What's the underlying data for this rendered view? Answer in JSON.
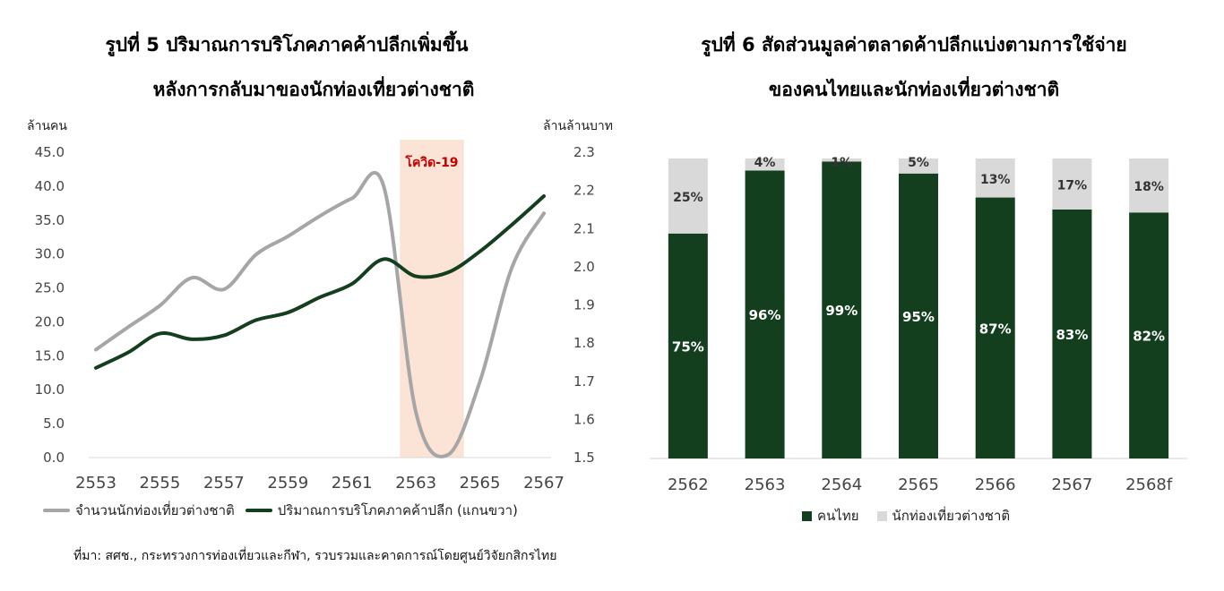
{
  "left_chart": {
    "title_line1": "รูปที่ 5 ปริมาณการบริโภคภาคค้าปลีกเพิ่มขึ้น",
    "title_line2": "หลังการกลับมาของนักท่องเที่ยวต่างชาติ",
    "left_unit": "ล้านคน",
    "right_unit": "ล้านล้านบาท",
    "covid_label": "โควิด-19",
    "legend_tourists": "จำนวนนักท่องเที่ยวต่างชาติ",
    "legend_consumption": "ปริมาณการบริโภคภาคค้าปลีก (แกนขวา)"
  },
  "right_chart": {
    "title_line1": "รูปที่ 6 สัดส่วนมูลค่าตลาดค้าปลีกแบ่งตามการใช้จ่าย",
    "title_line2": "ของคนไทยและนักท่องเที่ยวต่างชาติ",
    "legend_thai": "คนไทย",
    "legend_foreign": "นักท่องเที่ยวต่างชาติ"
  },
  "source": "ที่มา: สศช., กระทรวงการท่องเที่ยวและกีฬา, รวบรวมและคาดการณ์โดยศูนย์วิจัยกสิกรไทย",
  "colors": {
    "dark_green": "#133f1e",
    "grey": "#a6a6a6",
    "light_grey": "#d9d9d9",
    "covid_band": "#fbe3d6",
    "covid_text": "#c00000"
  },
  "chart_data": [
    {
      "type": "line",
      "x_ticks": [
        "2553",
        "2555",
        "2557",
        "2559",
        "2561",
        "2563",
        "2565",
        "2567"
      ],
      "y_left_ticks": [
        "0.0",
        "5.0",
        "10.0",
        "15.0",
        "20.0",
        "25.0",
        "30.0",
        "35.0",
        "40.0",
        "45.0"
      ],
      "y_right_ticks": [
        "1.5",
        "1.6",
        "1.7",
        "1.8",
        "1.9",
        "2.0",
        "2.1",
        "2.2",
        "2.3"
      ],
      "ylim_left": [
        0,
        45
      ],
      "ylim_right": [
        1.5,
        2.3
      ],
      "covid_band": [
        2562.5,
        2564.5
      ],
      "series": [
        {
          "name": "จำนวนนักท่องเที่ยวต่างชาติ",
          "axis": "left",
          "color": "#a6a6a6",
          "x": [
            2553,
            2554,
            2555,
            2556,
            2557,
            2558,
            2559,
            2560,
            2561,
            2562,
            2563,
            2564,
            2565,
            2566,
            2567
          ],
          "values": [
            15.9,
            19.2,
            22.4,
            26.5,
            24.8,
            29.9,
            32.6,
            35.6,
            38.2,
            39.9,
            6.7,
            0.4,
            11.2,
            28.0,
            36.0
          ]
        },
        {
          "name": "ปริมาณการบริโภคภาคค้าปลีก (แกนขวา)",
          "axis": "right",
          "color": "#133f1e",
          "x": [
            2553,
            2554,
            2555,
            2556,
            2557,
            2558,
            2559,
            2560,
            2561,
            2562,
            2563,
            2564,
            2565,
            2566,
            2567
          ],
          "values": [
            1.735,
            1.775,
            1.825,
            1.81,
            1.82,
            1.86,
            1.88,
            1.92,
            1.955,
            2.02,
            1.975,
            1.985,
            2.04,
            2.11,
            2.185
          ]
        }
      ]
    },
    {
      "type": "bar",
      "stacked": true,
      "categories": [
        "2562",
        "2563",
        "2564",
        "2565",
        "2566",
        "2567",
        "2568f"
      ],
      "series": [
        {
          "name": "คนไทย",
          "color": "#133f1e",
          "values": [
            75,
            96,
            99,
            95,
            87,
            83,
            82
          ],
          "labels": [
            "75%",
            "96%",
            "99%",
            "95%",
            "87%",
            "83%",
            "82%"
          ]
        },
        {
          "name": "นักท่องเที่ยวต่างชาติ",
          "color": "#d9d9d9",
          "values": [
            25,
            4,
            1,
            5,
            13,
            17,
            18
          ],
          "labels": [
            "25%",
            "4%",
            "1%",
            "5%",
            "13%",
            "17%",
            "18%"
          ]
        }
      ],
      "ylim": [
        0,
        100
      ]
    }
  ]
}
